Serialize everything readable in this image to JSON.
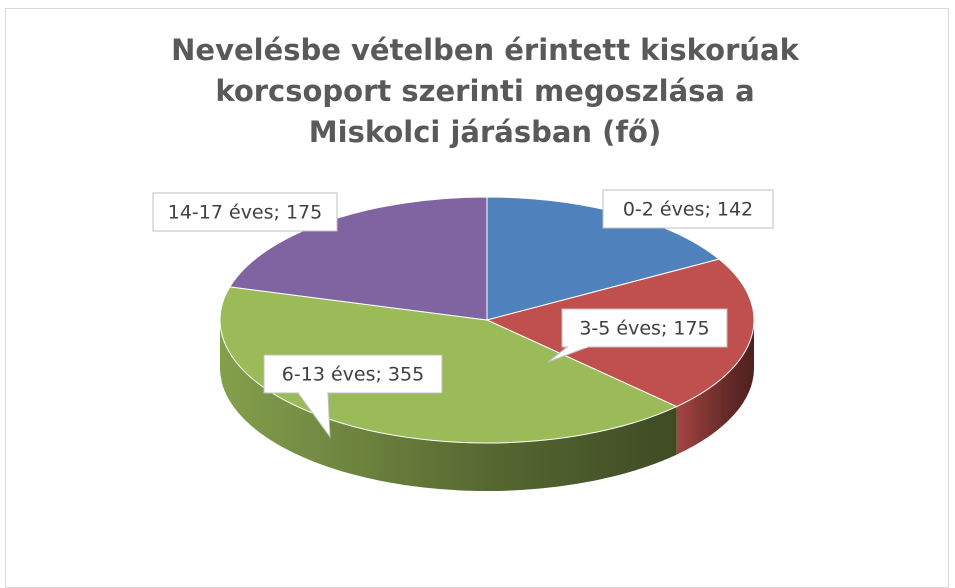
{
  "chart_data": {
    "type": "pie3d",
    "title": "Nevelésbe vételben érintett kiskorúak korcsoport szerinti megoszlása a Miskolci járásban (fő)",
    "categories": [
      "0-2 éves",
      "3-5 éves",
      "6-13 éves",
      "14-17 éves"
    ],
    "values": [
      142,
      175,
      355,
      175
    ],
    "value_labels": [
      "0-2 éves; 142",
      "3-5 éves; 175",
      "6-13 éves; 355",
      "14-17 éves; 175"
    ],
    "colors": [
      "#4f81bd",
      "#c0504d",
      "#9bbb59",
      "#8064a2"
    ]
  }
}
